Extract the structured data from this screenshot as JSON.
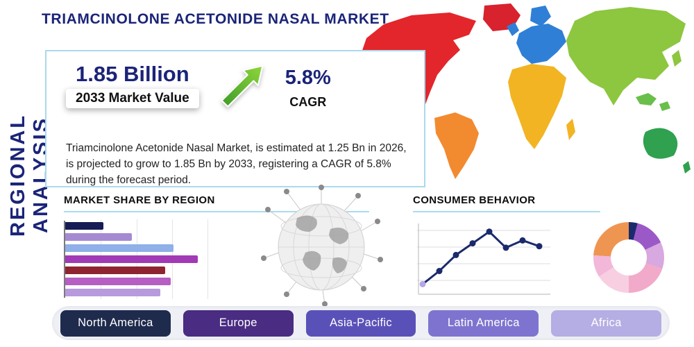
{
  "title": "TRIAMCINOLONE ACETONIDE NASAL MARKET",
  "side_label": "REGIONAL ANALYSIS",
  "stats": {
    "market_value": "1.85 Billion",
    "market_value_label": "2033 Market Value",
    "cagr_value": "5.8%",
    "cagr_label": "CAGR"
  },
  "description": "Triamcinolone Acetonide Nasal Market, is estimated at 1.25 Bn in 2026, is projected to grow to 1.85 Bn by 2033, registering a CAGR of 5.8% during the forecast period.",
  "sections": {
    "market_share": "MARKET SHARE BY REGION",
    "consumer_behavior": "CONSUMER BEHAVIOR"
  },
  "regions": [
    {
      "label": "North America",
      "color": "#1f2b4d",
      "text": "#ffffff"
    },
    {
      "label": "Europe",
      "color": "#4a2c82",
      "text": "#ffffff"
    },
    {
      "label": "Asia-Pacific",
      "color": "#5a51b8",
      "text": "#ffffff"
    },
    {
      "label": "Latin America",
      "color": "#7e74cf",
      "text": "#ffffff"
    },
    {
      "label": "Africa",
      "color": "#b5aee4",
      "text": "#ffffff"
    }
  ],
  "accent_colors": {
    "title_navy": "#1b2478",
    "underline_blue": "#aadcef",
    "box_border_blue": "#a9d9ec",
    "arrow_green_dark": "#3d9b2a",
    "arrow_green_light": "#8fd63a"
  },
  "map_colors": {
    "north_america": "#e3262b",
    "greenland": "#d8222e",
    "south_america": "#f28a30",
    "europe": "#2f7fd6",
    "scandinavia": "#2f7fd6",
    "uk": "#2f7fd6",
    "africa": "#f2b422",
    "madagascar": "#f2b422",
    "asia": "#8dc63f",
    "japan": "#8dc63f",
    "islands": "#6abf4b",
    "australia": "#2fa14f",
    "new_zealand": "#2fa14f"
  },
  "chart_data": [
    {
      "type": "bar",
      "name": "market_share_by_region",
      "title": "MARKET SHARE BY REGION",
      "orientation": "horizontal",
      "values": [
        27,
        47,
        76,
        93,
        70,
        74,
        67
      ],
      "max": 100,
      "colors": [
        "#161c55",
        "#a58ad2",
        "#8fb0e8",
        "#a13ab5",
        "#8f2430",
        "#b65ec2",
        "#b79ade"
      ],
      "grid": true
    },
    {
      "type": "line",
      "name": "consumer_behavior",
      "title": "CONSUMER BEHAVIOR",
      "x": [
        1,
        2,
        3,
        4,
        5,
        6,
        7,
        8
      ],
      "values": [
        12,
        30,
        52,
        68,
        84,
        62,
        72,
        64
      ],
      "ylim": [
        0,
        100
      ],
      "color": "#1b2a6c",
      "first_point_color": "#b7a6e8",
      "grid": true,
      "markers": true
    },
    {
      "type": "pie",
      "name": "region_share_donut",
      "hole": 0.52,
      "segments": [
        {
          "color": "#1b2a6b",
          "value": 4
        },
        {
          "color": "#9b59c8",
          "value": 14
        },
        {
          "color": "#d8a8e0",
          "value": 12
        },
        {
          "color": "#f2aacb",
          "value": 20
        },
        {
          "color": "#f7cfe0",
          "value": 16
        },
        {
          "color": "#f2b7d9",
          "value": 10
        },
        {
          "color": "#ef9552",
          "value": 24
        }
      ]
    }
  ]
}
